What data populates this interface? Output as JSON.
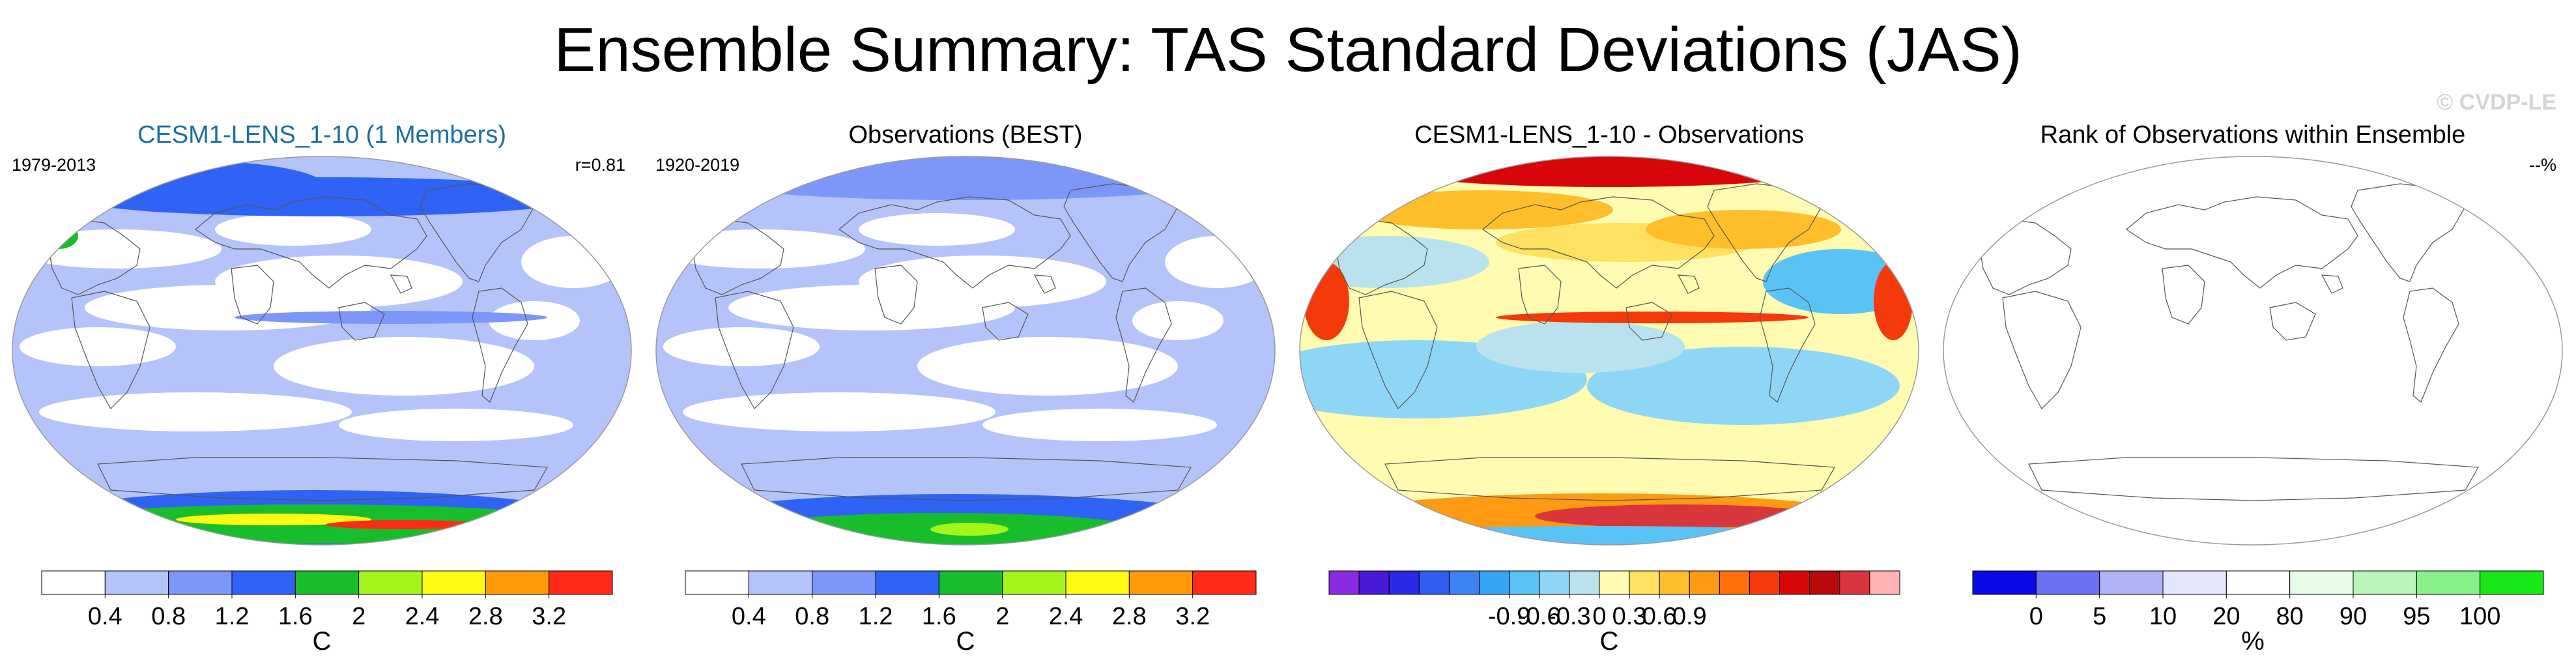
{
  "title": "Ensemble Summary: TAS Standard Deviations (JAS)",
  "watermark": "© CVDP-LE",
  "chart_data": [
    {
      "type": "heatmap",
      "title": "CESM1-LENS_1-10 (1 Members)",
      "left_label": "1979-2013",
      "right_label": "r=0.81",
      "units": "C",
      "title_color": "#1b6fa0",
      "colorbar_colors": [
        "#ffffff",
        "#b4c4fa",
        "#7d96fa",
        "#2f63f5",
        "#18bd2c",
        "#a4f51c",
        "#fffa14",
        "#ff9b0a",
        "#ff2a1a"
      ],
      "colorbar_ticks": [
        "0.4",
        "0.8",
        "1.2",
        "1.6",
        "2",
        "2.4",
        "2.8",
        "3.2"
      ]
    },
    {
      "type": "heatmap",
      "title": "Observations (BEST)",
      "left_label": "1920-2019",
      "right_label": "",
      "units": "C",
      "title_color": "#000000",
      "colorbar_colors": [
        "#ffffff",
        "#b4c4fa",
        "#7d96fa",
        "#2f63f5",
        "#18bd2c",
        "#a4f51c",
        "#fffa14",
        "#ff9b0a",
        "#ff2a1a"
      ],
      "colorbar_ticks": [
        "0.4",
        "0.8",
        "1.2",
        "1.6",
        "2",
        "2.4",
        "2.8",
        "3.2"
      ]
    },
    {
      "type": "heatmap",
      "title": "CESM1-LENS_1-10 - Observations",
      "left_label": "",
      "right_label": "",
      "units": "C",
      "title_color": "#000000",
      "colorbar_colors": [
        "#8a2be2",
        "#4a18d8",
        "#2a2ae6",
        "#2f5ef0",
        "#3c82f0",
        "#36a4f2",
        "#5ac3f5",
        "#8ed6f5",
        "#b9e2ee",
        "#fffbb0",
        "#ffe061",
        "#ffbe2a",
        "#ff9a12",
        "#ff6f0a",
        "#f43a0a",
        "#d8060a",
        "#b80a0a",
        "#d8363c",
        "#ffb1b4"
      ],
      "colorbar_ticks": [
        "-0.9",
        "-0.6",
        "-0.3",
        "0",
        "0.3",
        "0.6",
        "0.9"
      ]
    },
    {
      "type": "heatmap",
      "title": "Rank of Observations within Ensemble",
      "left_label": "",
      "right_label": "--%",
      "units": "%",
      "title_color": "#000000",
      "colorbar_colors": [
        "#0a0ae6",
        "#6a6ef0",
        "#b0b2f8",
        "#e4e6fc",
        "#ffffff",
        "#e6fce6",
        "#b8f5b8",
        "#88f088",
        "#18e818"
      ],
      "colorbar_ticks": [
        "0",
        "5",
        "10",
        "20",
        "80",
        "90",
        "95",
        "100"
      ]
    }
  ]
}
